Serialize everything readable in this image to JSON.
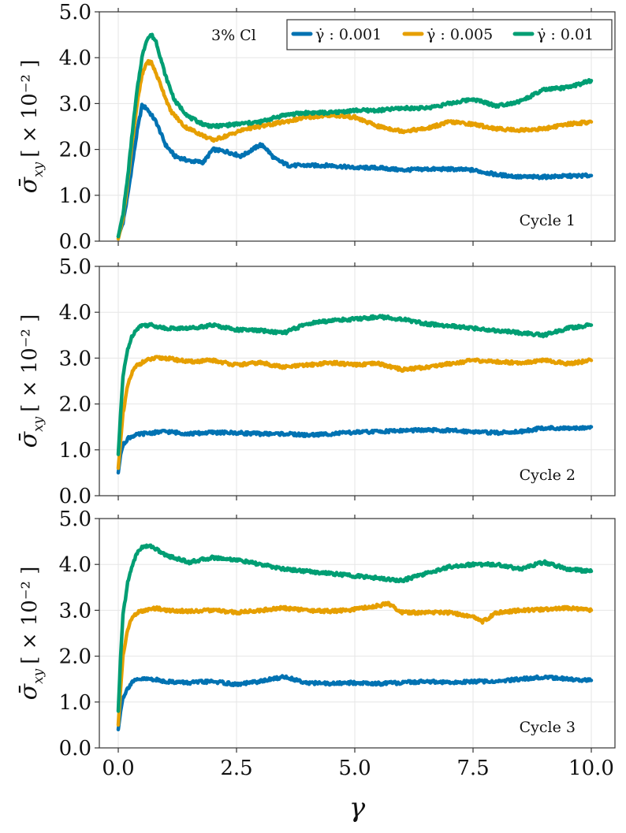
{
  "chart_data": {
    "type": "line",
    "xlabel": "γ",
    "xlim": [
      -0.4,
      10.5
    ],
    "xticks": [
      0.0,
      2.5,
      5.0,
      7.5,
      10.0
    ],
    "xtick_labels": [
      "0.0",
      "2.5",
      "5.0",
      "7.5",
      "10.0"
    ],
    "ylim": [
      0.0,
      5.0
    ],
    "yticks": [
      0.0,
      1.0,
      2.0,
      3.0,
      4.0,
      5.0
    ],
    "ytick_labels": [
      "0.0",
      "1.0",
      "2.0",
      "3.0",
      "4.0",
      "5.0"
    ],
    "ylabel": {
      "main": "σ̄",
      "sub": "xy",
      "unit": "[ × 10⁻² ]"
    },
    "grid": true,
    "legend": {
      "placement": "top-right",
      "title": "3% Cl",
      "entries": [
        {
          "label": "γ̇ :  0.001",
          "color": "#0072B2"
        },
        {
          "label": "γ̇ :  0.005",
          "color": "#E69F00"
        },
        {
          "label": "γ̇ :  0.01",
          "color": "#009E73"
        }
      ]
    },
    "panels": [
      {
        "name": "Cycle 1",
        "series": [
          {
            "name": "0.001",
            "color": "#0072B2",
            "x": [
              0,
              0.1,
              0.2,
              0.3,
              0.4,
              0.5,
              0.6,
              0.8,
              1.0,
              1.2,
              1.5,
              1.8,
              2.0,
              2.3,
              2.6,
              3.0,
              3.1,
              3.3,
              3.6,
              4.0,
              4.5,
              5.0,
              5.5,
              6.0,
              6.5,
              7.0,
              7.5,
              8.0,
              8.5,
              9.0,
              9.5,
              10.0
            ],
            "y": [
              0.1,
              0.4,
              1.0,
              1.7,
              2.4,
              2.95,
              2.9,
              2.6,
              2.1,
              1.85,
              1.75,
              1.72,
              2.0,
              1.95,
              1.85,
              2.1,
              2.05,
              1.8,
              1.65,
              1.65,
              1.65,
              1.6,
              1.6,
              1.55,
              1.57,
              1.57,
              1.55,
              1.45,
              1.4,
              1.4,
              1.42,
              1.43
            ]
          },
          {
            "name": "0.005",
            "color": "#E69F00",
            "x": [
              0,
              0.1,
              0.2,
              0.3,
              0.4,
              0.5,
              0.6,
              0.7,
              0.9,
              1.1,
              1.4,
              1.8,
              2.0,
              2.3,
              2.7,
              3.0,
              3.5,
              4.0,
              4.5,
              5.0,
              5.5,
              6.0,
              6.5,
              7.0,
              7.5,
              8.0,
              8.5,
              9.0,
              9.5,
              10.0
            ],
            "y": [
              0.05,
              0.5,
              1.3,
              2.2,
              3.0,
              3.6,
              3.9,
              3.9,
              3.4,
              2.85,
              2.5,
              2.3,
              2.2,
              2.3,
              2.45,
              2.5,
              2.6,
              2.7,
              2.75,
              2.7,
              2.5,
              2.4,
              2.45,
              2.6,
              2.55,
              2.45,
              2.42,
              2.45,
              2.55,
              2.6
            ]
          },
          {
            "name": "0.01",
            "color": "#009E73",
            "x": [
              0,
              0.1,
              0.2,
              0.3,
              0.4,
              0.5,
              0.6,
              0.7,
              0.8,
              1.0,
              1.2,
              1.5,
              1.8,
              2.0,
              2.5,
              3.0,
              3.5,
              4.0,
              4.5,
              5.0,
              5.5,
              6.0,
              6.5,
              7.0,
              7.5,
              8.0,
              8.5,
              9.0,
              9.5,
              10.0
            ],
            "y": [
              0.1,
              0.6,
              1.4,
              2.4,
              3.3,
              4.0,
              4.4,
              4.5,
              4.35,
              3.6,
              3.05,
              2.7,
              2.55,
              2.5,
              2.55,
              2.6,
              2.75,
              2.8,
              2.8,
              2.85,
              2.85,
              2.9,
              2.9,
              3.0,
              3.1,
              2.95,
              3.05,
              3.3,
              3.35,
              3.5
            ]
          }
        ]
      },
      {
        "name": "Cycle 2",
        "series": [
          {
            "name": "0.001",
            "color": "#0072B2",
            "x": [
              0,
              0.05,
              0.1,
              0.2,
              0.3,
              0.5,
              0.8,
              1.0,
              1.5,
              2.0,
              2.5,
              3.0,
              3.5,
              4.0,
              4.5,
              5.0,
              5.5,
              6.0,
              6.5,
              7.0,
              7.5,
              8.0,
              8.5,
              9.0,
              9.5,
              10.0
            ],
            "y": [
              0.5,
              0.9,
              1.1,
              1.25,
              1.3,
              1.35,
              1.38,
              1.4,
              1.35,
              1.38,
              1.37,
              1.35,
              1.35,
              1.32,
              1.35,
              1.38,
              1.4,
              1.42,
              1.43,
              1.42,
              1.4,
              1.37,
              1.4,
              1.48,
              1.46,
              1.5
            ]
          },
          {
            "name": "0.005",
            "color": "#E69F00",
            "x": [
              0,
              0.05,
              0.1,
              0.2,
              0.3,
              0.4,
              0.6,
              0.8,
              1.0,
              1.5,
              2.0,
              2.5,
              3.0,
              3.5,
              4.0,
              4.5,
              5.0,
              5.5,
              6.0,
              6.5,
              7.0,
              7.5,
              8.0,
              8.5,
              9.0,
              9.5,
              10.0
            ],
            "y": [
              0.6,
              1.2,
              1.8,
              2.4,
              2.7,
              2.85,
              2.95,
              3.0,
              3.0,
              2.92,
              2.95,
              2.85,
              2.9,
              2.8,
              2.85,
              2.9,
              2.85,
              2.88,
              2.75,
              2.8,
              2.88,
              2.95,
              2.92,
              2.9,
              2.95,
              2.88,
              2.95
            ]
          },
          {
            "name": "0.01",
            "color": "#009E73",
            "x": [
              0,
              0.05,
              0.1,
              0.2,
              0.3,
              0.4,
              0.5,
              0.7,
              1.0,
              1.5,
              2.0,
              2.5,
              3.0,
              3.5,
              4.0,
              4.5,
              5.0,
              5.5,
              6.0,
              6.5,
              7.0,
              7.5,
              8.0,
              8.5,
              9.0,
              9.5,
              10.0
            ],
            "y": [
              0.9,
              1.8,
              2.6,
              3.2,
              3.5,
              3.65,
              3.72,
              3.72,
              3.65,
              3.65,
              3.72,
              3.62,
              3.6,
              3.55,
              3.75,
              3.82,
              3.85,
              3.9,
              3.85,
              3.75,
              3.7,
              3.65,
              3.6,
              3.55,
              3.5,
              3.65,
              3.72
            ]
          }
        ]
      },
      {
        "name": "Cycle 3",
        "series": [
          {
            "name": "0.001",
            "color": "#0072B2",
            "x": [
              0,
              0.05,
              0.1,
              0.2,
              0.3,
              0.5,
              0.7,
              1.0,
              1.5,
              2.0,
              2.5,
              3.0,
              3.5,
              4.0,
              4.5,
              5.0,
              5.5,
              6.0,
              6.5,
              7.0,
              7.5,
              8.0,
              8.5,
              9.0,
              9.5,
              10.0
            ],
            "y": [
              0.4,
              0.8,
              1.1,
              1.3,
              1.45,
              1.5,
              1.5,
              1.45,
              1.42,
              1.45,
              1.38,
              1.45,
              1.55,
              1.42,
              1.4,
              1.42,
              1.4,
              1.42,
              1.45,
              1.42,
              1.45,
              1.45,
              1.5,
              1.55,
              1.5,
              1.47
            ]
          },
          {
            "name": "0.005",
            "color": "#E69F00",
            "x": [
              0,
              0.05,
              0.1,
              0.2,
              0.3,
              0.4,
              0.6,
              0.8,
              1.0,
              1.5,
              2.0,
              2.5,
              3.0,
              3.5,
              4.0,
              4.5,
              5.0,
              5.5,
              5.7,
              6.0,
              6.5,
              7.0,
              7.5,
              7.7,
              8.0,
              8.5,
              9.0,
              9.5,
              10.0
            ],
            "y": [
              0.5,
              1.3,
              2.0,
              2.6,
              2.85,
              2.95,
              3.0,
              3.05,
              3.0,
              2.98,
              3.0,
              2.95,
              3.0,
              3.05,
              3.0,
              2.98,
              3.02,
              3.1,
              3.15,
              2.95,
              2.95,
              2.95,
              2.85,
              2.75,
              2.95,
              3.0,
              3.02,
              3.05,
              3.0
            ]
          },
          {
            "name": "0.01",
            "color": "#009E73",
            "x": [
              0,
              0.05,
              0.1,
              0.2,
              0.3,
              0.4,
              0.5,
              0.7,
              1.0,
              1.5,
              2.0,
              2.5,
              3.0,
              3.5,
              4.0,
              4.5,
              5.0,
              5.5,
              6.0,
              6.5,
              7.0,
              7.5,
              8.0,
              8.5,
              9.0,
              9.5,
              10.0
            ],
            "y": [
              0.8,
              2.0,
              2.9,
              3.6,
              4.0,
              4.25,
              4.38,
              4.4,
              4.2,
              4.05,
              4.15,
              4.1,
              4.0,
              3.9,
              3.85,
              3.8,
              3.75,
              3.7,
              3.65,
              3.8,
              3.95,
              4.0,
              4.0,
              3.9,
              4.05,
              3.9,
              3.85
            ]
          }
        ]
      }
    ]
  }
}
